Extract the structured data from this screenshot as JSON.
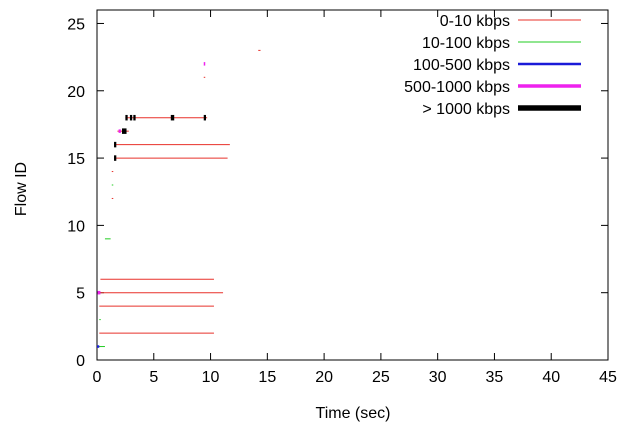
{
  "chart_data": {
    "type": "line",
    "xlabel": "Time (sec)",
    "ylabel": "Flow ID",
    "xlim": [
      0,
      45
    ],
    "ylim": [
      0,
      26
    ],
    "xticks": [
      0,
      5,
      10,
      15,
      20,
      25,
      30,
      35,
      40,
      45
    ],
    "yticks": [
      0,
      5,
      10,
      15,
      20,
      25
    ],
    "grid": false,
    "legend_position": "top-right",
    "legend": [
      {
        "label": "0-10 kbps",
        "color": "#e8302a",
        "stroke": 1
      },
      {
        "label": "10-100 kbps",
        "color": "#22cc22",
        "stroke": 1
      },
      {
        "label": "100-500 kbps",
        "color": "#1a1ad8",
        "stroke": 2.5
      },
      {
        "label": "500-1000 kbps",
        "color": "#ee22ee",
        "stroke": 3.5
      },
      {
        "label": "> 1000 kbps",
        "color": "#000000",
        "stroke": 5.5
      }
    ],
    "segments": [
      {
        "flow": 1,
        "x0": 0.0,
        "x1": 0.7,
        "rate": "10-100 kbps"
      },
      {
        "flow": 1,
        "x0": 0.0,
        "x1": 0.2,
        "rate": "100-500 kbps"
      },
      {
        "flow": 2,
        "x0": 0.2,
        "x1": 10.3,
        "rate": "0-10 kbps"
      },
      {
        "flow": 3,
        "x0": 0.2,
        "x1": 0.3,
        "rate": "10-100 kbps"
      },
      {
        "flow": 4,
        "x0": 0.2,
        "x1": 10.3,
        "rate": "0-10 kbps"
      },
      {
        "flow": 5,
        "x0": 0.1,
        "x1": 11.1,
        "rate": "0-10 kbps"
      },
      {
        "flow": 5,
        "x0": 0.05,
        "x1": 0.3,
        "rate": "500-1000 kbps"
      },
      {
        "flow": 6,
        "x0": 0.3,
        "x1": 10.3,
        "rate": "0-10 kbps"
      },
      {
        "flow": 9,
        "x0": 0.7,
        "x1": 1.2,
        "rate": "10-100 kbps"
      },
      {
        "flow": 12,
        "x0": 1.3,
        "x1": 1.4,
        "rate": "0-10 kbps"
      },
      {
        "flow": 13,
        "x0": 1.3,
        "x1": 1.4,
        "rate": "10-100 kbps"
      },
      {
        "flow": 14,
        "x0": 1.3,
        "x1": 1.4,
        "rate": "0-10 kbps"
      },
      {
        "flow": 15,
        "x0": 1.5,
        "x1": 11.5,
        "rate": "0-10 kbps"
      },
      {
        "flow": 15,
        "x0": 1.5,
        "x1": 1.7,
        "rate": "> 1000 kbps"
      },
      {
        "flow": 16,
        "x0": 1.5,
        "x1": 11.7,
        "rate": "0-10 kbps"
      },
      {
        "flow": 16,
        "x0": 1.5,
        "x1": 1.7,
        "rate": "> 1000 kbps"
      },
      {
        "flow": 17,
        "x0": 1.8,
        "x1": 2.8,
        "rate": "0-10 kbps"
      },
      {
        "flow": 17,
        "x0": 1.9,
        "x1": 2.1,
        "rate": "500-1000 kbps"
      },
      {
        "flow": 17,
        "x0": 2.2,
        "x1": 2.6,
        "rate": "> 1000 kbps"
      },
      {
        "flow": 18,
        "x0": 2.5,
        "x1": 9.7,
        "rate": "0-10 kbps"
      },
      {
        "flow": 18,
        "x0": 2.5,
        "x1": 2.7,
        "rate": "> 1000 kbps"
      },
      {
        "flow": 18,
        "x0": 2.9,
        "x1": 3.1,
        "rate": "> 1000 kbps"
      },
      {
        "flow": 18,
        "x0": 3.2,
        "x1": 3.4,
        "rate": "> 1000 kbps"
      },
      {
        "flow": 18,
        "x0": 6.5,
        "x1": 6.8,
        "rate": "> 1000 kbps"
      },
      {
        "flow": 18,
        "x0": 9.4,
        "x1": 9.6,
        "rate": "> 1000 kbps"
      },
      {
        "flow": 21,
        "x0": 9.4,
        "x1": 9.5,
        "rate": "0-10 kbps"
      },
      {
        "flow": 22,
        "x0": 9.4,
        "x1": 9.5,
        "rate": "500-1000 kbps"
      },
      {
        "flow": 23,
        "x0": 14.2,
        "x1": 14.4,
        "rate": "0-10 kbps"
      }
    ]
  }
}
